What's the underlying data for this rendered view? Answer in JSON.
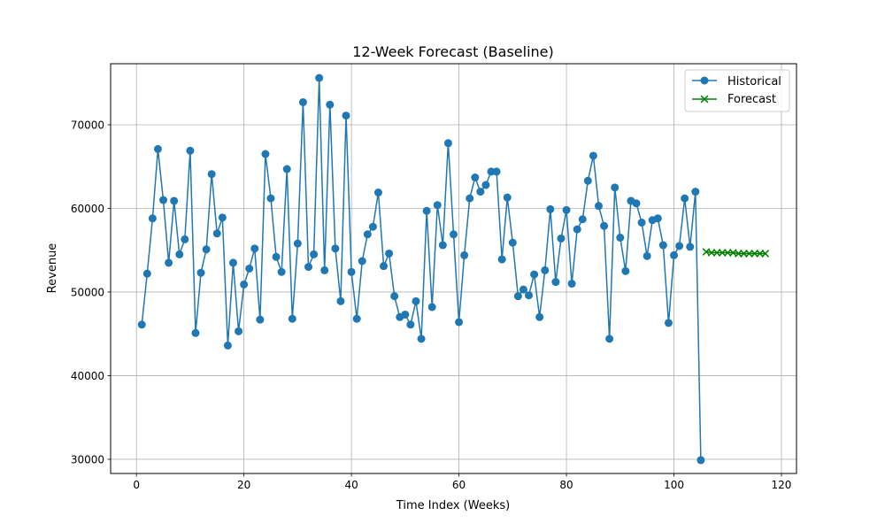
{
  "chart_data": {
    "type": "line",
    "title": "12-Week Forecast (Baseline)",
    "xlabel": "Time Index (Weeks)",
    "ylabel": "Revenue",
    "xlim": [
      -4.8,
      122.8
    ],
    "ylim": [
      28300,
      77300
    ],
    "xticks": [
      0,
      20,
      40,
      60,
      80,
      100,
      120
    ],
    "yticks": [
      30000,
      40000,
      50000,
      60000,
      70000
    ],
    "grid": true,
    "legend": "top-right",
    "series": [
      {
        "name": "Historical",
        "color": "#1f77b4",
        "marker": "circle",
        "x": [
          1,
          2,
          3,
          4,
          5,
          6,
          7,
          8,
          9,
          10,
          11,
          12,
          13,
          14,
          15,
          16,
          17,
          18,
          19,
          20,
          21,
          22,
          23,
          24,
          25,
          26,
          27,
          28,
          29,
          30,
          31,
          32,
          33,
          34,
          35,
          36,
          37,
          38,
          39,
          40,
          41,
          42,
          43,
          44,
          45,
          46,
          47,
          48,
          49,
          50,
          51,
          52,
          53,
          54,
          55,
          56,
          57,
          58,
          59,
          60,
          61,
          62,
          63,
          64,
          65,
          66,
          67,
          68,
          69,
          70,
          71,
          72,
          73,
          74,
          75,
          76,
          77,
          78,
          79,
          80,
          81,
          82,
          83,
          84,
          85,
          86,
          87,
          88,
          89,
          90,
          91,
          92,
          93,
          94,
          95,
          96,
          97,
          98,
          99,
          100,
          101,
          102,
          103,
          104,
          105
        ],
        "values": [
          46100,
          52200,
          58800,
          67100,
          61000,
          53500,
          60900,
          54500,
          56300,
          66900,
          45100,
          52300,
          55100,
          64100,
          57000,
          58900,
          43600,
          53500,
          45300,
          50900,
          52800,
          55200,
          46700,
          66500,
          61200,
          54200,
          52400,
          64700,
          46800,
          55800,
          72700,
          53000,
          54500,
          75600,
          52600,
          72400,
          55200,
          48900,
          71100,
          52400,
          46800,
          53700,
          56900,
          57800,
          61900,
          53100,
          54600,
          49500,
          47000,
          47300,
          46100,
          48900,
          44400,
          59700,
          48200,
          60400,
          55600,
          67800,
          56900,
          46400,
          54400,
          61200,
          63700,
          62000,
          62800,
          64400,
          64400,
          53900,
          61300,
          55900,
          49500,
          50300,
          49600,
          52100,
          47000,
          52600,
          59900,
          51200,
          56400,
          59800,
          51000,
          57500,
          58700,
          63300,
          66300,
          60300,
          57900,
          44400,
          62500,
          56500,
          52500,
          60900,
          60600,
          58300,
          54300,
          58600,
          58800,
          55600,
          46300,
          54400,
          55500,
          61200,
          55400,
          62000,
          29900
        ]
      },
      {
        "name": "Forecast",
        "color": "#008000",
        "marker": "x",
        "x": [
          106,
          107,
          108,
          109,
          110,
          111,
          112,
          113,
          114,
          115,
          116,
          117
        ],
        "values": [
          54800,
          54700,
          54700,
          54700,
          54700,
          54700,
          54600,
          54600,
          54600,
          54600,
          54600,
          54600
        ]
      }
    ]
  }
}
